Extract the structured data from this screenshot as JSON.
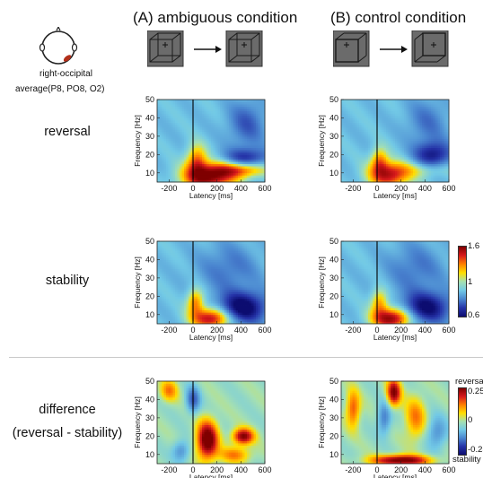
{
  "columns": [
    {
      "title": "(A) ambiguous condition"
    },
    {
      "title": "(B) control condition"
    }
  ],
  "head": {
    "region_label": "right-occipital",
    "electrodes": "average(P8, PO8, O2)"
  },
  "rows": [
    {
      "label": "reversal"
    },
    {
      "label": "stability"
    },
    {
      "label_line1": "difference",
      "label_line2": "(reversal - stability)"
    }
  ],
  "axes": {
    "ylabel": "Frequency [Hz]",
    "xlabel": "Latency [ms]",
    "xticks": [
      "-200",
      "0",
      "200",
      "400",
      "600"
    ],
    "yticks": [
      "50",
      "40",
      "30",
      "20",
      "10"
    ]
  },
  "colorbars": {
    "power": {
      "max": "1.6",
      "mid": "1",
      "min": "0.6"
    },
    "difference": {
      "top_label": "reversal",
      "max": "0.25",
      "mid": "0",
      "min": "-0.25",
      "bottom_label": "stability"
    }
  },
  "colors": {
    "dark_red": "#7f0000",
    "red": "#e31a1c",
    "yellow": "#ffde00",
    "cyan": "#8fd3e8",
    "blue": "#2a55b8",
    "dark_blue": "#10107a"
  },
  "chart_data": [
    {
      "type": "heatmap",
      "panel": "A-reversal",
      "x_range": [
        -300,
        600
      ],
      "y_range": [
        5,
        50
      ],
      "xlabel": "Latency [ms]",
      "ylabel": "Frequency [Hz]",
      "clim": [
        0.6,
        1.6
      ],
      "baseline": 1,
      "blobs": [
        {
          "x": 130,
          "y": 8,
          "sx": 150,
          "sy": 5,
          "amp": 0.6
        },
        {
          "x": 30,
          "y": 17,
          "sx": 60,
          "sy": 6,
          "amp": 0.35
        },
        {
          "x": 400,
          "y": 12,
          "sx": 150,
          "sy": 3,
          "amp": 0.4
        },
        {
          "x": 450,
          "y": 18,
          "sx": 130,
          "sy": 4,
          "amp": -0.3
        },
        {
          "x": 450,
          "y": 37,
          "sx": 110,
          "sy": 9,
          "amp": -0.2
        }
      ]
    },
    {
      "type": "heatmap",
      "panel": "B-reversal",
      "x_range": [
        -300,
        600
      ],
      "y_range": [
        5,
        50
      ],
      "xlabel": "Latency [ms]",
      "ylabel": "Frequency [Hz]",
      "clim": [
        0.6,
        1.6
      ],
      "baseline": 1,
      "blobs": [
        {
          "x": 100,
          "y": 9,
          "sx": 120,
          "sy": 5,
          "amp": 0.5
        },
        {
          "x": 20,
          "y": 17,
          "sx": 50,
          "sy": 5,
          "amp": 0.3
        },
        {
          "x": 380,
          "y": 12,
          "sx": 160,
          "sy": 3,
          "amp": 0.15
        },
        {
          "x": 470,
          "y": 20,
          "sx": 110,
          "sy": 5,
          "amp": -0.35
        },
        {
          "x": 420,
          "y": 38,
          "sx": 120,
          "sy": 9,
          "amp": -0.15
        }
      ]
    },
    {
      "type": "heatmap",
      "panel": "A-stability",
      "x_range": [
        -300,
        600
      ],
      "y_range": [
        5,
        50
      ],
      "xlabel": "Latency [ms]",
      "ylabel": "Frequency [Hz]",
      "clim": [
        0.6,
        1.6
      ],
      "baseline": 1,
      "blobs": [
        {
          "x": 150,
          "y": 8,
          "sx": 110,
          "sy": 4,
          "amp": 0.55
        },
        {
          "x": 20,
          "y": 17,
          "sx": 50,
          "sy": 5,
          "amp": 0.35
        },
        {
          "x": 420,
          "y": 14,
          "sx": 140,
          "sy": 6,
          "amp": -0.45
        },
        {
          "x": 300,
          "y": 35,
          "sx": 180,
          "sy": 10,
          "amp": -0.15
        }
      ]
    },
    {
      "type": "heatmap",
      "panel": "B-stability",
      "x_range": [
        -300,
        600
      ],
      "y_range": [
        5,
        50
      ],
      "xlabel": "Latency [ms]",
      "ylabel": "Frequency [Hz]",
      "clim": [
        0.6,
        1.6
      ],
      "baseline": 1,
      "blobs": [
        {
          "x": 120,
          "y": 8,
          "sx": 110,
          "sy": 4,
          "amp": 0.6
        },
        {
          "x": 20,
          "y": 17,
          "sx": 50,
          "sy": 5,
          "amp": 0.3
        },
        {
          "x": 420,
          "y": 14,
          "sx": 140,
          "sy": 6,
          "amp": -0.4
        },
        {
          "x": 320,
          "y": 35,
          "sx": 170,
          "sy": 10,
          "amp": -0.15
        }
      ]
    },
    {
      "type": "heatmap",
      "panel": "A-difference",
      "x_range": [
        -300,
        600
      ],
      "y_range": [
        5,
        50
      ],
      "xlabel": "Latency [ms]",
      "ylabel": "Frequency [Hz]",
      "clim": [
        -0.25,
        0.25
      ],
      "baseline": 0,
      "blobs": [
        {
          "x": 120,
          "y": 18,
          "sx": 60,
          "sy": 7,
          "amp": 0.3
        },
        {
          "x": 420,
          "y": 20,
          "sx": 60,
          "sy": 3,
          "amp": 0.25
        },
        {
          "x": -200,
          "y": 45,
          "sx": 50,
          "sy": 4,
          "amp": 0.12
        },
        {
          "x": 0,
          "y": 40,
          "sx": 40,
          "sy": 5,
          "amp": -0.15
        },
        {
          "x": -100,
          "y": 12,
          "sx": 50,
          "sy": 4,
          "amp": -0.1
        },
        {
          "x": 350,
          "y": 10,
          "sx": 90,
          "sy": 3,
          "amp": 0.12
        }
      ]
    },
    {
      "type": "heatmap",
      "panel": "B-difference",
      "x_range": [
        -300,
        600
      ],
      "y_range": [
        5,
        50
      ],
      "xlabel": "Latency [ms]",
      "ylabel": "Frequency [Hz]",
      "clim": [
        -0.25,
        0.25
      ],
      "baseline": 0,
      "blobs": [
        {
          "x": 200,
          "y": 7,
          "sx": 160,
          "sy": 2,
          "amp": 0.28
        },
        {
          "x": 140,
          "y": 44,
          "sx": 40,
          "sy": 5,
          "amp": 0.25
        },
        {
          "x": -200,
          "y": 35,
          "sx": 40,
          "sy": 7,
          "amp": 0.15
        },
        {
          "x": 320,
          "y": 30,
          "sx": 60,
          "sy": 8,
          "amp": 0.12
        },
        {
          "x": 60,
          "y": 30,
          "sx": 40,
          "sy": 6,
          "amp": -0.12
        },
        {
          "x": 500,
          "y": 22,
          "sx": 60,
          "sy": 6,
          "amp": -0.1
        }
      ]
    }
  ]
}
